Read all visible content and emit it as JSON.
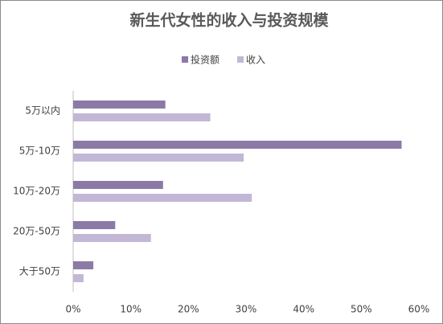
{
  "chart_data": {
    "type": "hbar",
    "title": "新生代女性的收入与投资规模",
    "categories": [
      "5万以内",
      "5万-10万",
      "10万-20万",
      "20万-50万",
      "大于50万"
    ],
    "series": [
      {
        "name": "投资额",
        "color": "#8c7aa6",
        "values": [
          16,
          57,
          15.6,
          7.3,
          3.5
        ]
      },
      {
        "name": "收入",
        "color": "#c3b7d6",
        "values": [
          23.8,
          29.6,
          31,
          13.5,
          1.8
        ]
      }
    ],
    "xlim": [
      0,
      60
    ],
    "xticks": [
      {
        "value": 0,
        "label": "0%"
      },
      {
        "value": 10,
        "label": "10%"
      },
      {
        "value": 20,
        "label": "20%"
      },
      {
        "value": 30,
        "label": "30%"
      },
      {
        "value": 40,
        "label": "40%"
      },
      {
        "value": 50,
        "label": "50%"
      },
      {
        "value": 60,
        "label": "60%"
      }
    ],
    "legend": "top"
  }
}
